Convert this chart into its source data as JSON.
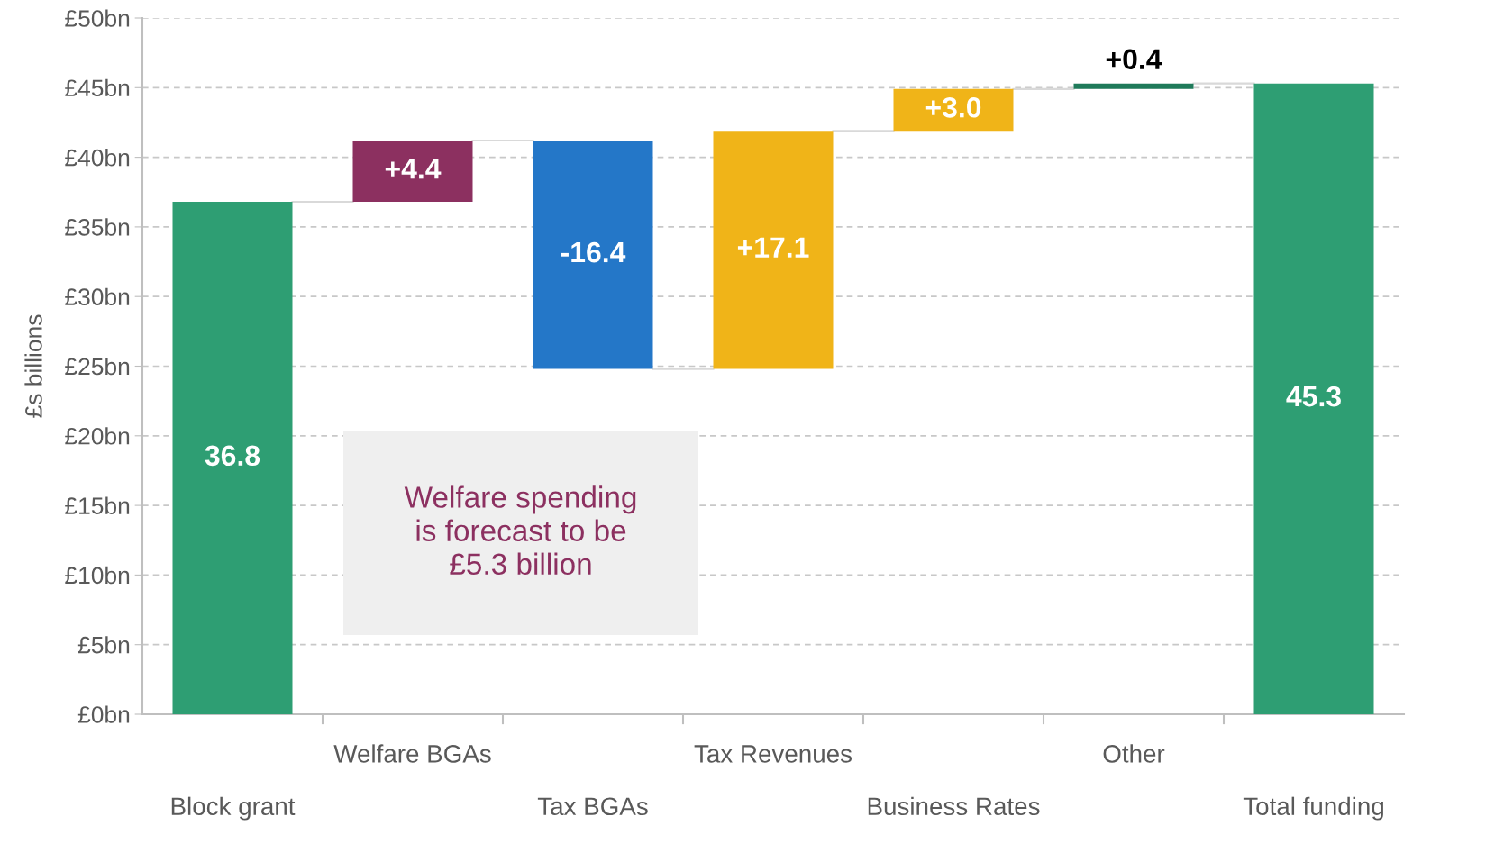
{
  "chart_data": {
    "type": "bar",
    "categories": [
      "Block grant",
      "Welfare BGAs",
      "Tax BGAs",
      "Tax Revenues",
      "Business Rates",
      "Other",
      "Total funding"
    ],
    "values": [
      36.8,
      4.4,
      -16.4,
      17.1,
      3.0,
      0.4,
      45.3
    ],
    "base": [
      0,
      36.8,
      41.2,
      24.8,
      41.9,
      44.9,
      0
    ],
    "colors": [
      "#2e9e73",
      "#8c3060",
      "#2477c8",
      "#f0b418",
      "#f0b418",
      "#1f7a5a",
      "#2e9e73"
    ],
    "value_labels": [
      "36.8",
      "+4.4",
      "-16.4",
      "+17.1",
      "+3.0",
      "+0.4",
      "45.3"
    ],
    "ylabel": "£s billions",
    "ylim": [
      0,
      50
    ],
    "yticks": [
      {
        "value": 0,
        "label": "£0bn"
      },
      {
        "value": 5,
        "label": "£5bn"
      },
      {
        "value": 10,
        "label": "£10bn"
      },
      {
        "value": 15,
        "label": "£15bn"
      },
      {
        "value": 20,
        "label": "£20bn"
      },
      {
        "value": 25,
        "label": "£25bn"
      },
      {
        "value": 30,
        "label": "£30bn"
      },
      {
        "value": 35,
        "label": "£35bn"
      },
      {
        "value": 40,
        "label": "£40bn"
      },
      {
        "value": 45,
        "label": "£45bn"
      },
      {
        "value": 50,
        "label": "£50bn"
      }
    ],
    "grid": "y",
    "annotations": [
      "Welfare spending\nis forecast to be\n£5.3 billion"
    ]
  }
}
